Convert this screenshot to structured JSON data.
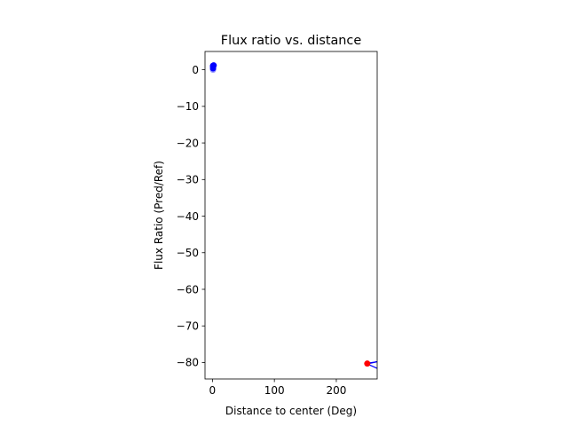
{
  "chart_data": {
    "type": "scatter",
    "title": "Flux ratio vs. distance",
    "xlabel": "Distance to center (Deg)",
    "ylabel": "Flux Ratio (Pred/Ref)",
    "xlim": [
      -12,
      266
    ],
    "ylim": [
      -84.5,
      5
    ],
    "xticks": [
      0,
      100,
      200
    ],
    "yticks": [
      0,
      -10,
      -20,
      -30,
      -40,
      -50,
      -60,
      -70,
      -80
    ],
    "grid": false,
    "series": [
      {
        "color": "#0000ff",
        "points": [
          {
            "x": 1,
            "y": 0.8
          },
          {
            "x": 1,
            "y": 1.1
          },
          {
            "x": 1,
            "y": 0.4
          },
          {
            "x": 1,
            "y": 0.0,
            "alpha": 0.4
          },
          {
            "x": 2,
            "y": 1.2
          }
        ]
      },
      {
        "color": "#ff0000",
        "points": [
          {
            "x": 250,
            "y": -80.3
          }
        ]
      }
    ],
    "line": {
      "color": "#0000ff",
      "points": [
        {
          "x": 250,
          "y": -80.2
        },
        {
          "x": 266,
          "y": -79.8
        },
        {
          "x": 250,
          "y": -80.4
        },
        {
          "x": 266,
          "y": -81.6
        }
      ]
    }
  }
}
